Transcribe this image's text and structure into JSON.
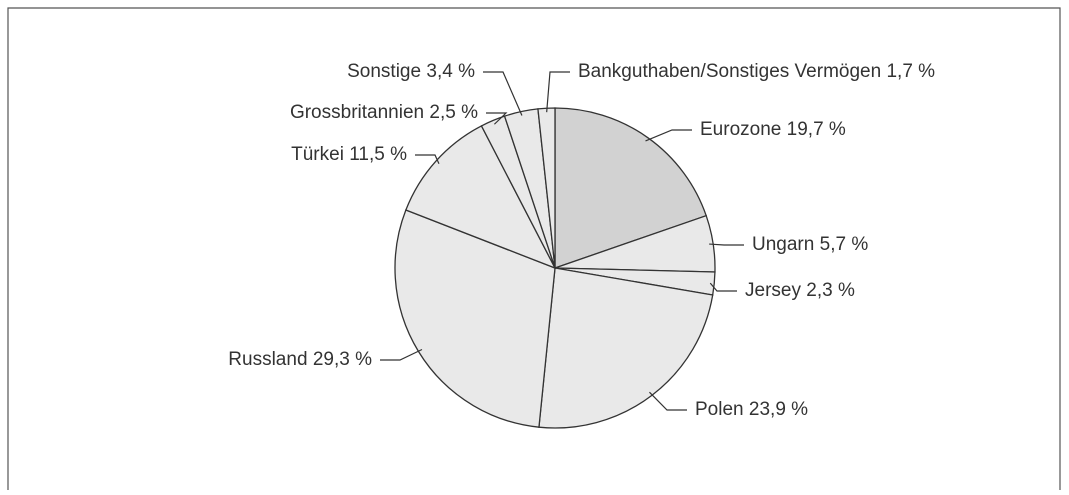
{
  "chart_data": {
    "type": "pie",
    "categories": [
      "Eurozone",
      "Ungarn",
      "Jersey",
      "Polen",
      "Russland",
      "Türkei",
      "Grossbritannien",
      "Sonstige",
      "Bankguthaben/Sonstiges Vermögen"
    ],
    "values": [
      19.7,
      5.7,
      2.3,
      23.9,
      29.3,
      11.5,
      2.5,
      3.4,
      1.7
    ],
    "value_labels": [
      "19,7 %",
      "5,7 %",
      "2,3 %",
      "23,9 %",
      "29,3 %",
      "11,5 %",
      "2,5 %",
      "3,4 %",
      "1,7 %"
    ],
    "colors": [
      "#d2d2d2",
      "#e9e9e9",
      "#e9e9e9",
      "#e9e9e9",
      "#e9e9e9",
      "#e9e9e9",
      "#e9e9e9",
      "#e9e9e9",
      "#e9e9e9"
    ]
  }
}
